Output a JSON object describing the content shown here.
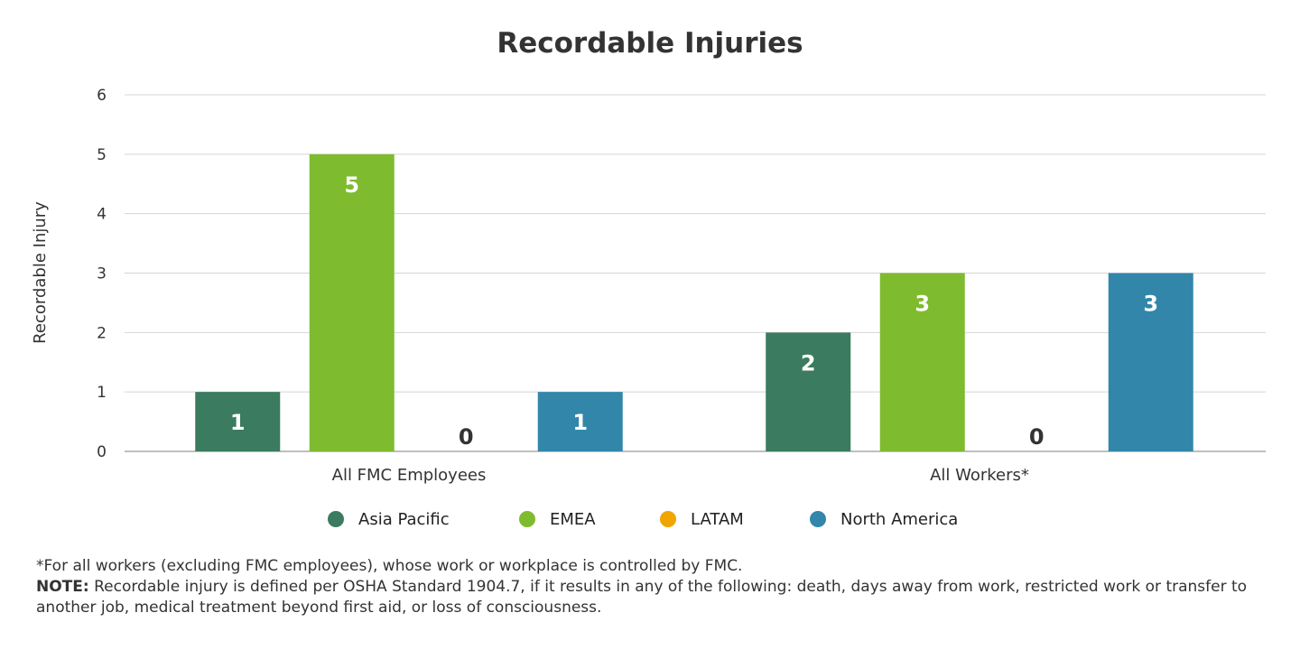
{
  "chart_data": {
    "type": "bar",
    "title": "Recordable Injuries",
    "xlabel": "",
    "ylabel": "Recordable Injury",
    "ylim": [
      0,
      6
    ],
    "yticks": [
      "0",
      "1",
      "2",
      "3",
      "4",
      "5",
      "6"
    ],
    "grid": true,
    "legend_placement": "bottom",
    "categories": [
      "All FMC Employees",
      "All Workers*"
    ],
    "series": [
      {
        "name": "Asia Pacific",
        "color": "#3b7b5f",
        "values": [
          1,
          2
        ]
      },
      {
        "name": "EMEA",
        "color": "#7fbb2f",
        "values": [
          5,
          3
        ]
      },
      {
        "name": "LATAM",
        "color": "#f0a500",
        "values": [
          0,
          0
        ]
      },
      {
        "name": "North America",
        "color": "#3286aa",
        "values": [
          1,
          3
        ]
      }
    ]
  },
  "footnote": {
    "asterisk_note": "*For all workers (excluding FMC employees), whose work or workplace is controlled by FMC.",
    "note_label": "NOTE:",
    "note_text": " Recordable injury is defined per OSHA Standard 1904.7, if it results in any of the following: death, days away from work, restricted work or transfer to another job, medical treatment beyond first aid, or loss of consciousness."
  }
}
